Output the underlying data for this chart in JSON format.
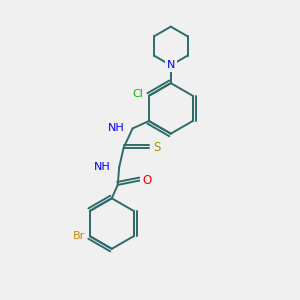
{
  "bg_color": "#f0f0f0",
  "bond_color": "#2d6b6b",
  "atom_colors": {
    "N": "#0000ff",
    "O": "#ff0000",
    "S": "#999900",
    "Cl": "#00bb00",
    "Br": "#cc8800",
    "C": "#2d6b6b",
    "H": "#2d6b6b"
  }
}
